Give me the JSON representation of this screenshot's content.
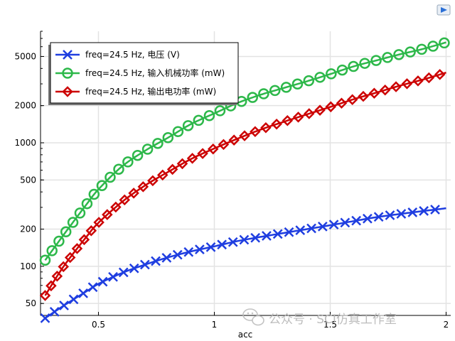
{
  "chart_data": {
    "type": "line",
    "xlabel": "acc",
    "ylabel": "",
    "xlim": [
      0.25,
      2.02
    ],
    "ylim": [
      40,
      8000
    ],
    "yscale": "log",
    "grid": true,
    "x_ticks": [
      0.5,
      1,
      1.5,
      2
    ],
    "x_tick_labels": [
      "0.5",
      "1",
      "1.5",
      "2"
    ],
    "y_ticks": [
      50,
      100,
      200,
      500,
      1000,
      2000,
      5000
    ],
    "y_tick_labels": [
      "50",
      "100",
      "200",
      "500",
      "1000",
      "2000",
      "5000"
    ],
    "legend_position": "top-left",
    "x": [
      0.27,
      0.35,
      0.45,
      0.5,
      0.6,
      0.7,
      0.8,
      0.9,
      1.0,
      1.1,
      1.2,
      1.3,
      1.4,
      1.5,
      1.6,
      1.7,
      1.8,
      1.9,
      2.0
    ],
    "series": [
      {
        "name": "freq=24.5 Hz, 电压 (V)",
        "color": "#1f3ee0",
        "marker": "x",
        "values": [
          38,
          48,
          63,
          72,
          88,
          103,
          118,
          132,
          145,
          160,
          173,
          186,
          200,
          215,
          232,
          250,
          265,
          280,
          295
        ]
      },
      {
        "name": "freq=24.5 Hz, 输入机械功率 (mW)",
        "color": "#2db84a",
        "marker": "o",
        "values": [
          112,
          180,
          320,
          420,
          640,
          860,
          1100,
          1420,
          1730,
          2100,
          2450,
          2780,
          3150,
          3600,
          4150,
          4650,
          5200,
          5750,
          6500
        ]
      },
      {
        "name": "freq=24.5 Hz, 输出电功率 (mW)",
        "color": "#cc0000",
        "marker": "diamond",
        "values": [
          58,
          100,
          175,
          225,
          330,
          450,
          580,
          740,
          900,
          1080,
          1280,
          1480,
          1700,
          1950,
          2250,
          2550,
          2900,
          3250,
          3700
        ]
      }
    ]
  },
  "watermark": {
    "text": "公众号 · SCI仿真工作室"
  },
  "icons": {
    "corner": "window-control-icon",
    "watermark": "wechat-icon"
  }
}
